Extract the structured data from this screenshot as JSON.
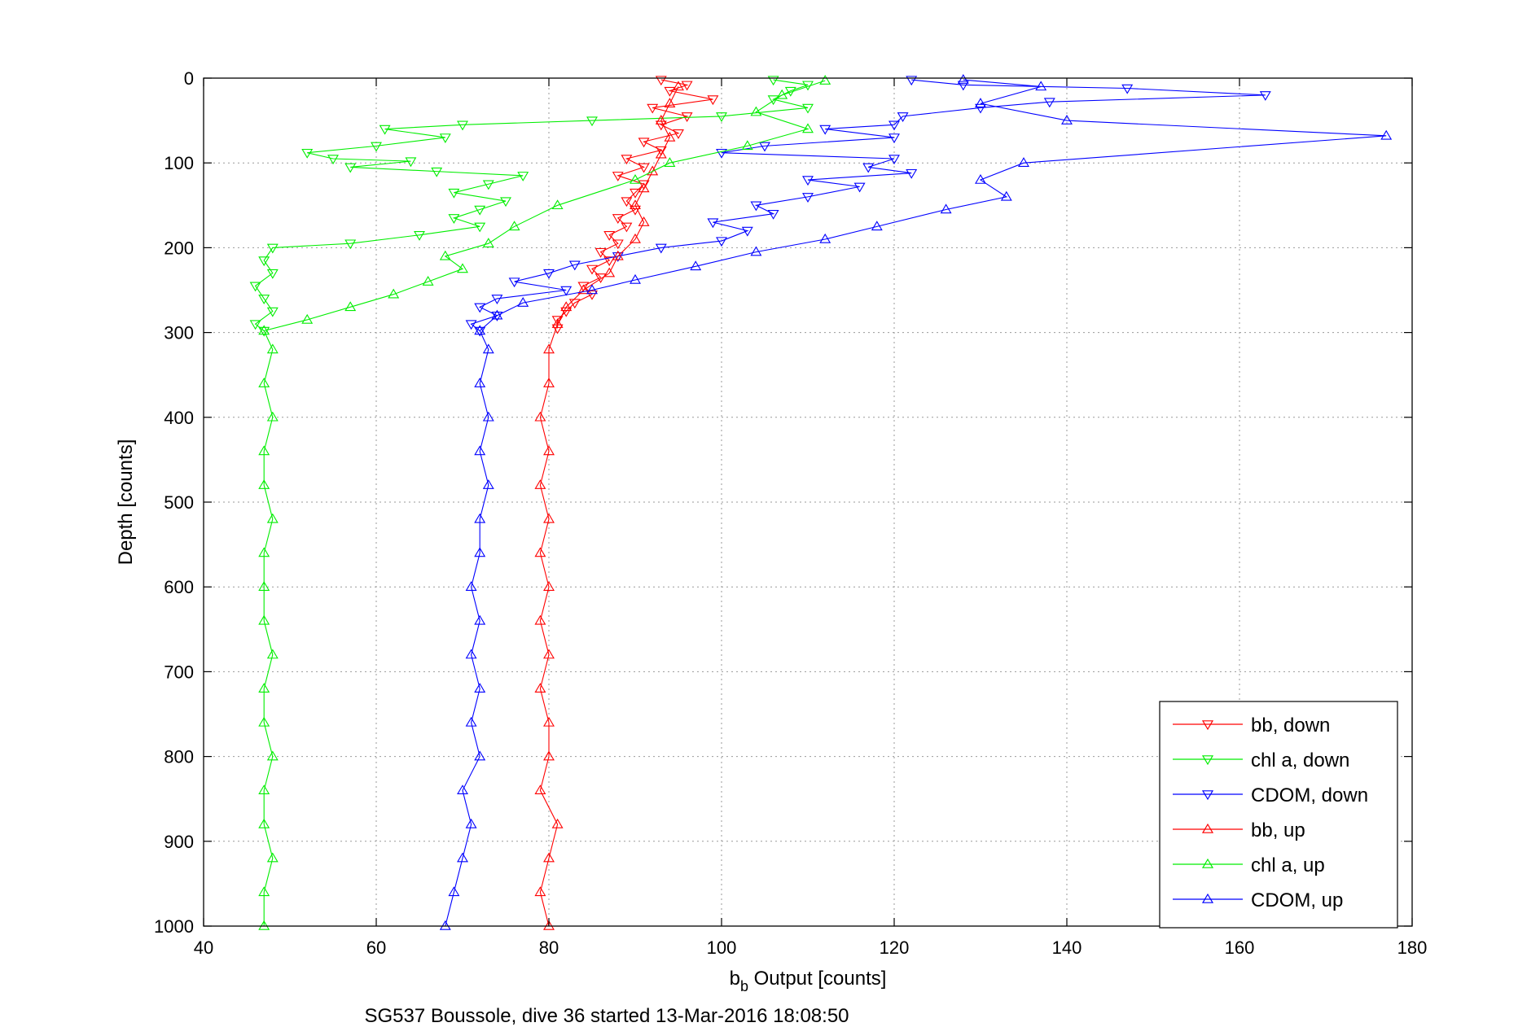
{
  "chart_data": {
    "type": "scatter",
    "x_axis": {
      "label_main": "b",
      "label_sub": "b",
      "label_rest": " Output [counts]",
      "range": [
        40,
        180
      ],
      "ticks": [
        40,
        60,
        80,
        100,
        120,
        140,
        160,
        180
      ]
    },
    "y_axis": {
      "label": "Depth [counts]",
      "range": [
        0,
        1000
      ],
      "reversed": true,
      "ticks": [
        0,
        100,
        200,
        300,
        400,
        500,
        600,
        700,
        800,
        900,
        1000
      ]
    },
    "grid": "dotted",
    "legend_position": "bottom-right",
    "footer": "SG537 Boussole, dive 36 started 13-Mar-2016 18:08:50",
    "series": [
      {
        "name": "bb, down",
        "color": "#ff0000",
        "marker": "triangle-down",
        "line": true,
        "points": [
          [
            93,
            2
          ],
          [
            96,
            8
          ],
          [
            94,
            15
          ],
          [
            99,
            25
          ],
          [
            92,
            35
          ],
          [
            96,
            45
          ],
          [
            93,
            55
          ],
          [
            95,
            65
          ],
          [
            91,
            75
          ],
          [
            93,
            85
          ],
          [
            89,
            95
          ],
          [
            91,
            105
          ],
          [
            88,
            115
          ],
          [
            91,
            125
          ],
          [
            90,
            135
          ],
          [
            89,
            145
          ],
          [
            90,
            155
          ],
          [
            88,
            165
          ],
          [
            89,
            175
          ],
          [
            87,
            185
          ],
          [
            88,
            195
          ],
          [
            86,
            205
          ],
          [
            87,
            215
          ],
          [
            85,
            225
          ],
          [
            86,
            235
          ],
          [
            84,
            245
          ],
          [
            85,
            255
          ],
          [
            83,
            265
          ],
          [
            82,
            275
          ],
          [
            81,
            285
          ],
          [
            81,
            295
          ]
        ]
      },
      {
        "name": "chl a, down",
        "color": "#00ee00",
        "marker": "triangle-down",
        "line": true,
        "points": [
          [
            106,
            2
          ],
          [
            110,
            8
          ],
          [
            108,
            15
          ],
          [
            106,
            25
          ],
          [
            110,
            35
          ],
          [
            100,
            45
          ],
          [
            85,
            50
          ],
          [
            70,
            55
          ],
          [
            61,
            60
          ],
          [
            68,
            70
          ],
          [
            60,
            80
          ],
          [
            52,
            88
          ],
          [
            55,
            95
          ],
          [
            64,
            98
          ],
          [
            57,
            105
          ],
          [
            67,
            110
          ],
          [
            77,
            115
          ],
          [
            73,
            125
          ],
          [
            69,
            135
          ],
          [
            75,
            145
          ],
          [
            72,
            155
          ],
          [
            69,
            165
          ],
          [
            72,
            175
          ],
          [
            65,
            185
          ],
          [
            57,
            195
          ],
          [
            48,
            200
          ],
          [
            47,
            215
          ],
          [
            48,
            230
          ],
          [
            46,
            245
          ],
          [
            47,
            260
          ],
          [
            48,
            275
          ],
          [
            46,
            290
          ],
          [
            47,
            298
          ]
        ]
      },
      {
        "name": "CDOM, down",
        "color": "#0000ff",
        "marker": "triangle-down",
        "line": true,
        "points": [
          [
            122,
            2
          ],
          [
            128,
            8
          ],
          [
            147,
            12
          ],
          [
            163,
            20
          ],
          [
            138,
            28
          ],
          [
            130,
            35
          ],
          [
            121,
            45
          ],
          [
            120,
            55
          ],
          [
            112,
            60
          ],
          [
            120,
            70
          ],
          [
            105,
            80
          ],
          [
            100,
            88
          ],
          [
            120,
            95
          ],
          [
            117,
            105
          ],
          [
            122,
            112
          ],
          [
            110,
            120
          ],
          [
            116,
            128
          ],
          [
            110,
            140
          ],
          [
            104,
            150
          ],
          [
            106,
            160
          ],
          [
            99,
            170
          ],
          [
            103,
            180
          ],
          [
            100,
            192
          ],
          [
            93,
            200
          ],
          [
            88,
            210
          ],
          [
            83,
            220
          ],
          [
            80,
            230
          ],
          [
            76,
            240
          ],
          [
            82,
            250
          ],
          [
            74,
            260
          ],
          [
            72,
            270
          ],
          [
            74,
            280
          ],
          [
            71,
            290
          ],
          [
            72,
            298
          ]
        ]
      },
      {
        "name": "bb, up",
        "color": "#ff0000",
        "marker": "triangle-up",
        "line": true,
        "points": [
          [
            80,
            1000
          ],
          [
            79,
            960
          ],
          [
            80,
            920
          ],
          [
            81,
            880
          ],
          [
            79,
            840
          ],
          [
            80,
            800
          ],
          [
            80,
            760
          ],
          [
            79,
            720
          ],
          [
            80,
            680
          ],
          [
            79,
            640
          ],
          [
            80,
            600
          ],
          [
            79,
            560
          ],
          [
            80,
            520
          ],
          [
            79,
            480
          ],
          [
            80,
            440
          ],
          [
            79,
            400
          ],
          [
            80,
            360
          ],
          [
            80,
            320
          ],
          [
            81,
            290
          ],
          [
            82,
            270
          ],
          [
            84,
            250
          ],
          [
            87,
            230
          ],
          [
            88,
            210
          ],
          [
            90,
            190
          ],
          [
            91,
            170
          ],
          [
            90,
            150
          ],
          [
            91,
            130
          ],
          [
            92,
            110
          ],
          [
            93,
            90
          ],
          [
            94,
            70
          ],
          [
            93,
            50
          ],
          [
            94,
            30
          ],
          [
            95,
            10
          ]
        ]
      },
      {
        "name": "chl a, up",
        "color": "#00ee00",
        "marker": "triangle-up",
        "line": true,
        "points": [
          [
            47,
            1000
          ],
          [
            47,
            960
          ],
          [
            48,
            920
          ],
          [
            47,
            880
          ],
          [
            47,
            840
          ],
          [
            48,
            800
          ],
          [
            47,
            760
          ],
          [
            47,
            720
          ],
          [
            48,
            680
          ],
          [
            47,
            640
          ],
          [
            47,
            600
          ],
          [
            47,
            560
          ],
          [
            48,
            520
          ],
          [
            47,
            480
          ],
          [
            47,
            440
          ],
          [
            48,
            400
          ],
          [
            47,
            360
          ],
          [
            48,
            320
          ],
          [
            47,
            298
          ],
          [
            52,
            285
          ],
          [
            57,
            270
          ],
          [
            62,
            255
          ],
          [
            66,
            240
          ],
          [
            70,
            225
          ],
          [
            68,
            210
          ],
          [
            73,
            195
          ],
          [
            76,
            175
          ],
          [
            81,
            150
          ],
          [
            90,
            120
          ],
          [
            94,
            100
          ],
          [
            103,
            80
          ],
          [
            110,
            60
          ],
          [
            104,
            40
          ],
          [
            107,
            20
          ],
          [
            112,
            3
          ]
        ]
      },
      {
        "name": "CDOM, up",
        "color": "#0000ff",
        "marker": "triangle-up",
        "line": true,
        "points": [
          [
            68,
            1000
          ],
          [
            69,
            960
          ],
          [
            70,
            920
          ],
          [
            71,
            880
          ],
          [
            70,
            840
          ],
          [
            72,
            800
          ],
          [
            71,
            760
          ],
          [
            72,
            720
          ],
          [
            71,
            680
          ],
          [
            72,
            640
          ],
          [
            71,
            600
          ],
          [
            72,
            560
          ],
          [
            72,
            520
          ],
          [
            73,
            480
          ],
          [
            72,
            440
          ],
          [
            73,
            400
          ],
          [
            72,
            360
          ],
          [
            73,
            320
          ],
          [
            72,
            298
          ],
          [
            74,
            280
          ],
          [
            77,
            265
          ],
          [
            85,
            250
          ],
          [
            90,
            238
          ],
          [
            97,
            222
          ],
          [
            104,
            205
          ],
          [
            112,
            190
          ],
          [
            118,
            175
          ],
          [
            126,
            155
          ],
          [
            133,
            140
          ],
          [
            130,
            120
          ],
          [
            135,
            100
          ],
          [
            177,
            68
          ],
          [
            140,
            50
          ],
          [
            130,
            30
          ],
          [
            137,
            10
          ],
          [
            128,
            2
          ]
        ]
      }
    ]
  }
}
